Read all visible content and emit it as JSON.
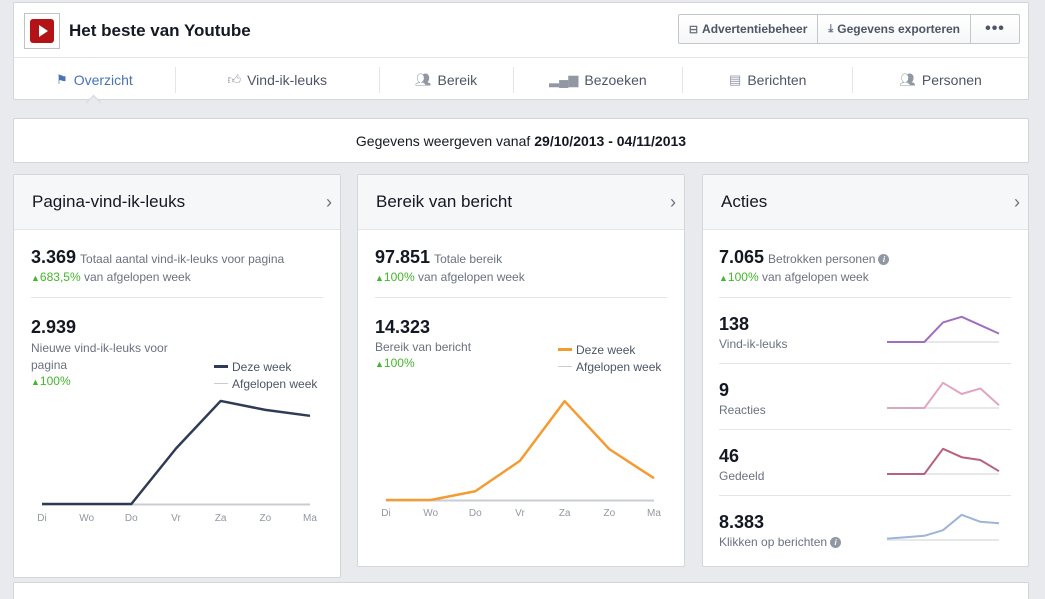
{
  "page": {
    "title": "Het beste van Youtube"
  },
  "header_buttons": [
    {
      "label": "Advertentiebeheer",
      "icon": "ad-manager-icon"
    },
    {
      "label": "Gegevens exporteren",
      "icon": "download-icon"
    },
    {
      "label": "•••",
      "icon": "more-icon"
    }
  ],
  "tabs": [
    {
      "label": "Overzicht",
      "icon": "flag-icon",
      "active": true
    },
    {
      "label": "Vind-ik-leuks",
      "icon": "thumbs-up-icon"
    },
    {
      "label": "Bereik",
      "icon": "people-icon"
    },
    {
      "label": "Bezoeken",
      "icon": "bar-chart-icon"
    },
    {
      "label": "Berichten",
      "icon": "posts-icon"
    },
    {
      "label": "Personen",
      "icon": "people-icon"
    }
  ],
  "date_range": {
    "prefix": "Gegevens weergeven vanaf",
    "range": "29/10/2013 - 04/11/2013"
  },
  "likes_card": {
    "title": "Pagina-vind-ik-leuks",
    "total": "3.369",
    "total_label": "Totaal aantal vind-ik-leuks voor pagina",
    "total_delta": "683,5%",
    "total_delta_suffix": "van afgelopen week",
    "new": "2.939",
    "new_label": "Nieuwe vind-ik-leuks voor pagina",
    "new_delta": "100%",
    "legend_this_week": "Deze week",
    "legend_last_week": "Afgelopen week"
  },
  "reach_card": {
    "title": "Bereik van bericht",
    "total": "97.851",
    "total_label": "Totale bereik",
    "total_delta": "100%",
    "total_delta_suffix": "van afgelopen week",
    "post_reach": "14.323",
    "post_reach_label": "Bereik van bericht",
    "post_reach_delta": "100%",
    "legend_this_week": "Deze week",
    "legend_last_week": "Afgelopen week"
  },
  "actions_card": {
    "title": "Acties",
    "engaged": "7.065",
    "engaged_label": "Betrokken personen",
    "engaged_delta": "100%",
    "engaged_delta_suffix": "van afgelopen week",
    "rows": [
      {
        "value": "138",
        "label": "Vind-ik-leuks",
        "color": "#a06fbf",
        "trend": [
          0,
          0,
          0,
          0.7,
          0.9,
          0.6,
          0.3
        ]
      },
      {
        "value": "9",
        "label": "Reacties",
        "color": "#e0a6c1",
        "trend": [
          0,
          0,
          0,
          0.9,
          0.5,
          0.7,
          0.1
        ]
      },
      {
        "value": "46",
        "label": "Gedeeld",
        "color": "#b8627c",
        "trend": [
          0,
          0,
          0,
          0.9,
          0.6,
          0.5,
          0.1
        ]
      },
      {
        "value": "8.383",
        "label": "Klikken op berichten",
        "color": "#9fb4d6",
        "trend": [
          0.05,
          0.1,
          0.15,
          0.35,
          0.9,
          0.65,
          0.6
        ]
      }
    ]
  },
  "colors": {
    "likes_line": "#2f3b55",
    "reach_line": "#f39c34",
    "last_week": "#c9ccd1",
    "accent": "#4a73b5",
    "up": "#42b72a"
  },
  "chart_data": [
    {
      "type": "line",
      "categories": [
        "Di",
        "Wo",
        "Do",
        "Vr",
        "Za",
        "Zo",
        "Ma"
      ],
      "series": [
        {
          "name": "Deze week",
          "values": [
            0,
            0,
            0,
            560,
            1040,
            950,
            890
          ]
        },
        {
          "name": "Afgelopen week",
          "values": [
            0,
            0,
            0,
            0,
            0,
            0,
            0
          ]
        }
      ],
      "ylim": [
        0,
        1100
      ]
    },
    {
      "type": "line",
      "categories": [
        "Di",
        "Wo",
        "Do",
        "Vr",
        "Za",
        "Zo",
        "Ma"
      ],
      "series": [
        {
          "name": "Deze week",
          "values": [
            0,
            0,
            600,
            2700,
            6800,
            3500,
            1500
          ]
        },
        {
          "name": "Afgelopen week",
          "values": [
            0,
            0,
            0,
            0,
            0,
            0,
            0
          ]
        }
      ],
      "ylim": [
        0,
        7500
      ]
    }
  ]
}
